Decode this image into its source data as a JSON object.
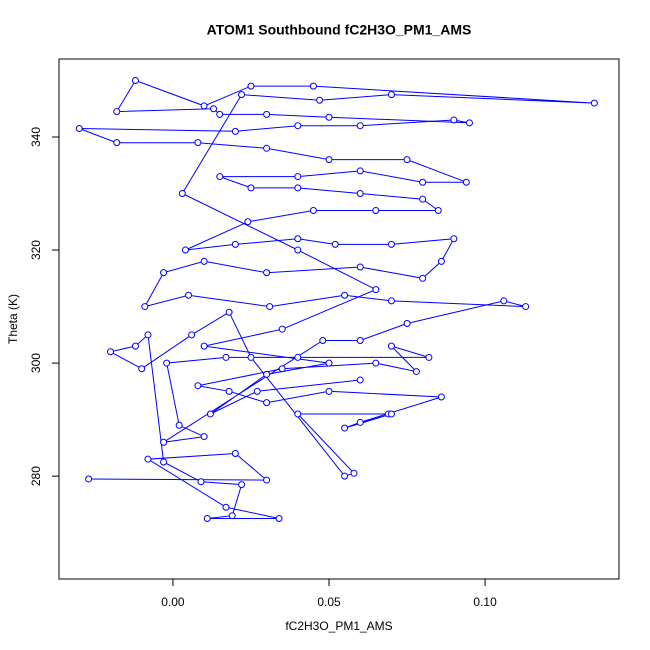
{
  "chart_data": {
    "type": "scatter",
    "title": "ATOM1 Southbound fC2H3O_PM1_AMS",
    "x_label": "fC2H3O_PM1_AMS",
    "y_label": "Theta (K)",
    "color": "#0000ff",
    "line": true,
    "xlim": [
      -0.0365,
      0.1429
    ],
    "ylim": [
      261.8,
      353.8
    ],
    "xticks": [
      {
        "value": 0,
        "label": "0.00"
      },
      {
        "value": 0.05,
        "label": "0.05"
      },
      {
        "value": 0.1,
        "label": "0.10"
      }
    ],
    "yticks": [
      280,
      300,
      320,
      340
    ],
    "x": [
      -0.027,
      0.03,
      0.02,
      -0.008,
      0.017,
      0.034,
      0.011,
      0.019,
      0.022,
      0.009,
      -0.003,
      -0.008,
      -0.012,
      -0.02,
      -0.01,
      0.006,
      0.018,
      0.025,
      0.055,
      0.058,
      0.04,
      0.069,
      0.07,
      0.055,
      0.06,
      0.086,
      0.05,
      0.03,
      0.018,
      0.008,
      0.035,
      0.065,
      0.078,
      0.07,
      0.082,
      0.04,
      0.017,
      -0.002,
      0.002,
      0.01,
      -0.003,
      0.048,
      0.06,
      0.075,
      0.106,
      0.113,
      0.07,
      0.055,
      0.031,
      0.005,
      -0.009,
      -0.003,
      0.01,
      0.03,
      0.06,
      0.08,
      0.086,
      0.09,
      0.07,
      0.052,
      0.04,
      0.02,
      0.004,
      0.024,
      0.045,
      0.065,
      0.085,
      0.08,
      0.06,
      0.04,
      0.025,
      0.015,
      0.04,
      0.06,
      0.08,
      0.094,
      0.075,
      0.05,
      0.03,
      0.008,
      -0.018,
      -0.03,
      0.02,
      0.04,
      0.06,
      0.09,
      0.095,
      0.05,
      0.03,
      0.015,
      0.013,
      -0.018,
      -0.012,
      0.01,
      0.025,
      0.045,
      0.135,
      0.07,
      0.047,
      0.022,
      0.003,
      0.04,
      0.065,
      0.035,
      0.01,
      0.05,
      0.03,
      0.012,
      0.027,
      0.06
    ],
    "values": [
      279.5,
      279.3,
      284,
      283,
      274.5,
      272.5,
      272.5,
      273,
      278.5,
      279,
      282.5,
      305,
      303,
      302,
      299,
      305,
      309,
      301,
      280,
      280.5,
      291,
      291,
      291,
      288.5,
      289.5,
      294,
      295,
      293,
      295,
      296,
      299,
      300,
      298.5,
      303,
      301,
      301,
      301,
      300,
      289,
      287,
      286,
      304,
      304,
      307,
      311,
      310,
      311,
      312,
      310,
      312,
      310,
      316,
      318,
      316,
      317,
      315,
      318,
      322,
      321,
      321,
      322,
      321,
      320,
      325,
      327,
      327,
      327,
      329,
      330,
      331,
      331,
      333,
      333,
      334,
      332,
      332,
      336,
      336,
      338,
      339,
      339,
      341.5,
      341,
      342,
      342,
      343,
      342.5,
      343.5,
      344,
      344,
      345,
      344.5,
      350,
      345.5,
      349,
      349,
      346,
      347.5,
      346.5,
      347.5,
      330,
      320,
      313,
      306,
      303,
      300,
      298,
      291,
      295,
      297
    ]
  }
}
